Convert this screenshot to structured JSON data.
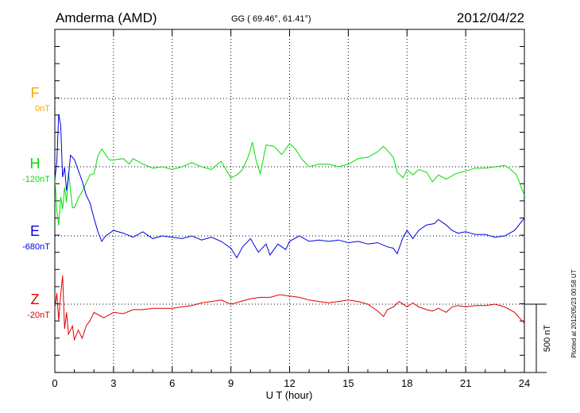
{
  "header": {
    "station": "Amderma (AMD)",
    "coords": "GG ( 69.46°,  61.41°)",
    "date": "2012/04/22"
  },
  "footer": {
    "plotted": "Plotted at 2012/05/23 00:58 UT"
  },
  "chart_data": {
    "type": "line",
    "title": "Amderma (AMD)",
    "xlabel": "U T (hour)",
    "xlim": [
      0,
      24
    ],
    "xticks": [
      0,
      3,
      6,
      9,
      12,
      15,
      18,
      21,
      24
    ],
    "grid": true,
    "scale_bar": {
      "label": "500 nT",
      "value_nT": 500
    },
    "series": [
      {
        "name": "F",
        "baseline_label": "0nT",
        "color": "#ffa500",
        "points": []
      },
      {
        "name": "H",
        "baseline_label": "-120nT",
        "color": "#00e000",
        "points": [
          [
            0,
            -70
          ],
          [
            0.1,
            -320
          ],
          [
            0.2,
            -430
          ],
          [
            0.3,
            -220
          ],
          [
            0.4,
            -310
          ],
          [
            0.5,
            -150
          ],
          [
            0.6,
            -260
          ],
          [
            0.7,
            -40
          ],
          [
            0.9,
            -300
          ],
          [
            1.0,
            -300
          ],
          [
            1.2,
            -230
          ],
          [
            1.4,
            -180
          ],
          [
            1.6,
            -120
          ],
          [
            1.8,
            -60
          ],
          [
            2.0,
            -50
          ],
          [
            2.2,
            80
          ],
          [
            2.4,
            130
          ],
          [
            2.6,
            90
          ],
          [
            2.8,
            50
          ],
          [
            3.0,
            50
          ],
          [
            3.5,
            60
          ],
          [
            3.8,
            20
          ],
          [
            4.0,
            60
          ],
          [
            4.5,
            20
          ],
          [
            5.0,
            -10
          ],
          [
            5.5,
            0
          ],
          [
            6.0,
            -20
          ],
          [
            6.5,
            0
          ],
          [
            7.0,
            30
          ],
          [
            7.5,
            0
          ],
          [
            8.0,
            -20
          ],
          [
            8.5,
            40
          ],
          [
            9.0,
            -80
          ],
          [
            9.3,
            -60
          ],
          [
            9.6,
            -20
          ],
          [
            9.9,
            80
          ],
          [
            10.1,
            180
          ],
          [
            10.3,
            40
          ],
          [
            10.5,
            -50
          ],
          [
            10.8,
            160
          ],
          [
            11.2,
            150
          ],
          [
            11.6,
            90
          ],
          [
            12.0,
            170
          ],
          [
            12.3,
            130
          ],
          [
            12.6,
            60
          ],
          [
            13.0,
            0
          ],
          [
            13.5,
            20
          ],
          [
            14.0,
            20
          ],
          [
            14.5,
            0
          ],
          [
            15.0,
            20
          ],
          [
            15.5,
            60
          ],
          [
            16.0,
            70
          ],
          [
            16.5,
            110
          ],
          [
            16.8,
            150
          ],
          [
            17.0,
            120
          ],
          [
            17.3,
            70
          ],
          [
            17.5,
            -40
          ],
          [
            17.8,
            -80
          ],
          [
            18.0,
            -20
          ],
          [
            18.3,
            -60
          ],
          [
            18.6,
            -20
          ],
          [
            19.0,
            -40
          ],
          [
            19.3,
            -110
          ],
          [
            19.6,
            -60
          ],
          [
            20.0,
            -90
          ],
          [
            20.5,
            -50
          ],
          [
            21.0,
            -30
          ],
          [
            21.5,
            -10
          ],
          [
            22.0,
            -10
          ],
          [
            22.5,
            0
          ],
          [
            23.0,
            10
          ],
          [
            23.3,
            -20
          ],
          [
            23.6,
            -60
          ],
          [
            24.0,
            -210
          ]
        ]
      },
      {
        "name": "E",
        "baseline_label": "-680nT",
        "color": "#0000e0",
        "points": [
          [
            0,
            410
          ],
          [
            0.1,
            540
          ],
          [
            0.2,
            890
          ],
          [
            0.3,
            810
          ],
          [
            0.4,
            430
          ],
          [
            0.5,
            500
          ],
          [
            0.6,
            330
          ],
          [
            0.7,
            430
          ],
          [
            0.8,
            590
          ],
          [
            1.0,
            560
          ],
          [
            1.2,
            480
          ],
          [
            1.4,
            400
          ],
          [
            1.6,
            300
          ],
          [
            1.8,
            240
          ],
          [
            2.0,
            130
          ],
          [
            2.2,
            30
          ],
          [
            2.4,
            -40
          ],
          [
            2.6,
            0
          ],
          [
            3.0,
            40
          ],
          [
            3.5,
            20
          ],
          [
            4.0,
            -10
          ],
          [
            4.5,
            30
          ],
          [
            5.0,
            -20
          ],
          [
            5.5,
            0
          ],
          [
            6.0,
            -10
          ],
          [
            6.5,
            -20
          ],
          [
            7.0,
            0
          ],
          [
            7.5,
            -30
          ],
          [
            8.0,
            -10
          ],
          [
            8.5,
            -40
          ],
          [
            9.0,
            -90
          ],
          [
            9.3,
            -160
          ],
          [
            9.6,
            -80
          ],
          [
            10.0,
            -20
          ],
          [
            10.4,
            -120
          ],
          [
            10.8,
            -60
          ],
          [
            11.0,
            -140
          ],
          [
            11.4,
            -60
          ],
          [
            11.8,
            -100
          ],
          [
            12.0,
            -40
          ],
          [
            12.5,
            0
          ],
          [
            13.0,
            -40
          ],
          [
            13.5,
            -30
          ],
          [
            14.0,
            -40
          ],
          [
            14.5,
            -30
          ],
          [
            15.0,
            -50
          ],
          [
            15.5,
            -40
          ],
          [
            16.0,
            -60
          ],
          [
            16.5,
            -50
          ],
          [
            17.0,
            -80
          ],
          [
            17.3,
            -90
          ],
          [
            17.5,
            -130
          ],
          [
            17.8,
            -10
          ],
          [
            18.0,
            40
          ],
          [
            18.3,
            -20
          ],
          [
            18.6,
            40
          ],
          [
            19.0,
            80
          ],
          [
            19.4,
            90
          ],
          [
            19.6,
            120
          ],
          [
            20.0,
            80
          ],
          [
            20.3,
            40
          ],
          [
            20.6,
            20
          ],
          [
            21.0,
            30
          ],
          [
            21.5,
            10
          ],
          [
            22.0,
            10
          ],
          [
            22.5,
            -10
          ],
          [
            23.0,
            0
          ],
          [
            23.5,
            40
          ],
          [
            24.0,
            130
          ]
        ]
      },
      {
        "name": "Z",
        "baseline_label": "-20nT",
        "color": "#e00000",
        "points": [
          [
            0,
            -30
          ],
          [
            0.1,
            80
          ],
          [
            0.2,
            -120
          ],
          [
            0.3,
            70
          ],
          [
            0.4,
            210
          ],
          [
            0.5,
            -180
          ],
          [
            0.6,
            -60
          ],
          [
            0.7,
            -220
          ],
          [
            0.9,
            -160
          ],
          [
            1.0,
            -260
          ],
          [
            1.2,
            -190
          ],
          [
            1.4,
            -250
          ],
          [
            1.6,
            -160
          ],
          [
            1.8,
            -120
          ],
          [
            2.0,
            -60
          ],
          [
            2.5,
            -100
          ],
          [
            3.0,
            -60
          ],
          [
            3.5,
            -70
          ],
          [
            4.0,
            -40
          ],
          [
            4.5,
            -40
          ],
          [
            5.0,
            -30
          ],
          [
            5.5,
            -30
          ],
          [
            6.0,
            -30
          ],
          [
            6.5,
            -20
          ],
          [
            7.0,
            -10
          ],
          [
            7.5,
            10
          ],
          [
            8.0,
            20
          ],
          [
            8.5,
            30
          ],
          [
            9.0,
            0
          ],
          [
            9.5,
            20
          ],
          [
            10.0,
            40
          ],
          [
            10.5,
            50
          ],
          [
            11.0,
            50
          ],
          [
            11.5,
            70
          ],
          [
            12.0,
            60
          ],
          [
            12.5,
            50
          ],
          [
            13.0,
            30
          ],
          [
            13.5,
            20
          ],
          [
            14.0,
            10
          ],
          [
            14.5,
            20
          ],
          [
            15.0,
            30
          ],
          [
            15.5,
            20
          ],
          [
            16.0,
            0
          ],
          [
            16.5,
            -50
          ],
          [
            16.8,
            -90
          ],
          [
            17.0,
            -40
          ],
          [
            17.3,
            -20
          ],
          [
            17.6,
            20
          ],
          [
            18.0,
            -20
          ],
          [
            18.3,
            10
          ],
          [
            18.6,
            -20
          ],
          [
            19.0,
            -40
          ],
          [
            19.3,
            -50
          ],
          [
            19.6,
            -30
          ],
          [
            20.0,
            -60
          ],
          [
            20.3,
            -20
          ],
          [
            20.6,
            -10
          ],
          [
            21.0,
            -20
          ],
          [
            21.5,
            -10
          ],
          [
            22.0,
            -10
          ],
          [
            22.5,
            0
          ],
          [
            23.0,
            -20
          ],
          [
            23.5,
            -60
          ],
          [
            24.0,
            -140
          ]
        ]
      }
    ]
  }
}
